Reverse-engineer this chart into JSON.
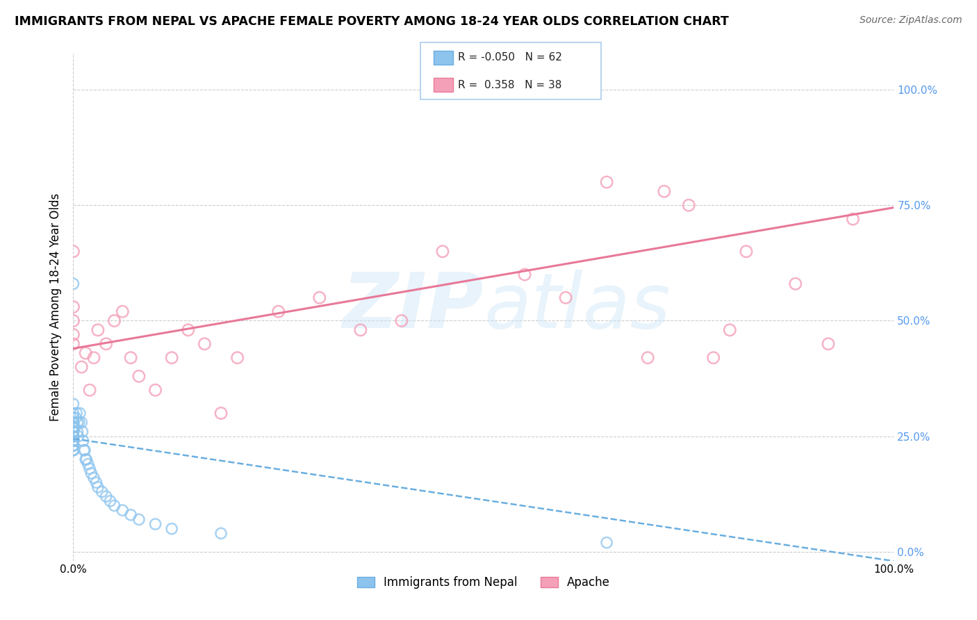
{
  "title": "IMMIGRANTS FROM NEPAL VS APACHE FEMALE POVERTY AMONG 18-24 YEAR OLDS CORRELATION CHART",
  "source": "Source: ZipAtlas.com",
  "ylabel": "Female Poverty Among 18-24 Year Olds",
  "xlim": [
    0,
    1.0
  ],
  "ylim": [
    -0.02,
    1.08
  ],
  "legend_nepal_r": "-0.050",
  "legend_nepal_n": "62",
  "legend_apache_r": "0.358",
  "legend_apache_n": "38",
  "nepal_color": "#8cc4ee",
  "apache_color": "#f4a0b8",
  "nepal_edge_color": "#6aaee0",
  "apache_edge_color": "#e87898",
  "nepal_line_color": "#6aaee0",
  "apache_line_color": "#e87898",
  "right_tick_color": "#5599ee",
  "nepal_x": [
    0.0,
    0.0,
    0.0,
    0.0,
    0.0,
    0.0,
    0.0,
    0.0,
    0.0,
    0.0,
    0.0,
    0.0,
    0.0,
    0.0,
    0.0,
    0.0,
    0.0,
    0.0,
    0.0,
    0.0,
    0.0,
    0.0,
    0.0,
    0.0,
    0.0,
    0.0,
    0.0,
    0.0,
    0.0,
    0.0,
    0.002,
    0.003,
    0.004,
    0.005,
    0.005,
    0.006,
    0.007,
    0.008,
    0.01,
    0.011,
    0.012,
    0.013,
    0.014,
    0.015,
    0.016,
    0.018,
    0.02,
    0.022,
    0.025,
    0.028,
    0.03,
    0.035,
    0.04,
    0.045,
    0.05,
    0.06,
    0.07,
    0.08,
    0.1,
    0.12,
    0.18,
    0.65
  ],
  "nepal_y": [
    0.58,
    0.22,
    0.23,
    0.24,
    0.25,
    0.25,
    0.26,
    0.26,
    0.27,
    0.27,
    0.22,
    0.23,
    0.24,
    0.24,
    0.25,
    0.25,
    0.26,
    0.27,
    0.27,
    0.28,
    0.22,
    0.23,
    0.24,
    0.25,
    0.26,
    0.27,
    0.28,
    0.29,
    0.3,
    0.32,
    0.27,
    0.29,
    0.3,
    0.28,
    0.26,
    0.25,
    0.28,
    0.3,
    0.28,
    0.26,
    0.24,
    0.22,
    0.22,
    0.2,
    0.2,
    0.19,
    0.18,
    0.17,
    0.16,
    0.15,
    0.14,
    0.13,
    0.12,
    0.11,
    0.1,
    0.09,
    0.08,
    0.07,
    0.06,
    0.05,
    0.04,
    0.02
  ],
  "apache_x": [
    0.0,
    0.0,
    0.0,
    0.0,
    0.0,
    0.01,
    0.015,
    0.02,
    0.025,
    0.03,
    0.04,
    0.05,
    0.06,
    0.07,
    0.08,
    0.1,
    0.12,
    0.14,
    0.16,
    0.18,
    0.2,
    0.25,
    0.3,
    0.35,
    0.4,
    0.45,
    0.55,
    0.6,
    0.65,
    0.7,
    0.72,
    0.75,
    0.78,
    0.8,
    0.82,
    0.88,
    0.92,
    0.95
  ],
  "apache_y": [
    0.45,
    0.47,
    0.5,
    0.53,
    0.65,
    0.4,
    0.43,
    0.35,
    0.42,
    0.48,
    0.45,
    0.5,
    0.52,
    0.42,
    0.38,
    0.35,
    0.42,
    0.48,
    0.45,
    0.3,
    0.42,
    0.52,
    0.55,
    0.48,
    0.5,
    0.65,
    0.6,
    0.55,
    0.8,
    0.42,
    0.78,
    0.75,
    0.42,
    0.48,
    0.65,
    0.58,
    0.45,
    0.72
  ],
  "nepal_line_x0": 0.0,
  "nepal_line_y0": 0.245,
  "nepal_line_x1": 1.0,
  "nepal_line_y1": -0.02,
  "apache_line_x0": 0.0,
  "apache_line_y0": 0.44,
  "apache_line_x1": 1.0,
  "apache_line_y1": 0.745
}
